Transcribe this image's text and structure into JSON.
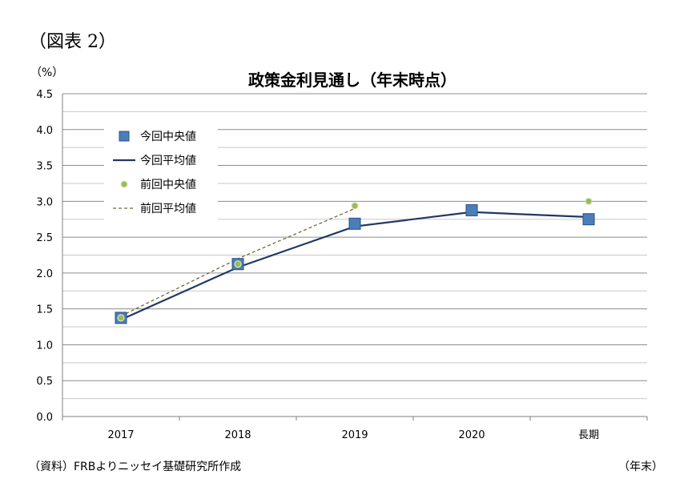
{
  "figure_label": "（図表 2）",
  "unit_label": "（%）",
  "source_note": "（資料）FRBよりニッセイ基礎研究所作成",
  "x_unit_label": "（年末）",
  "chart_data": {
    "type": "line",
    "title": "政策金利見通し（年末時点）",
    "xlabel": "",
    "ylabel": "（%）",
    "categories": [
      "2017",
      "2018",
      "2019",
      "2020",
      "長期"
    ],
    "ylim": [
      0,
      4.5
    ],
    "yticks": [
      "0.0",
      "0.5",
      "1.0",
      "1.5",
      "2.0",
      "2.5",
      "3.0",
      "3.5",
      "4.0",
      "4.5"
    ],
    "grid": true,
    "legend_position": "top-left",
    "series": [
      {
        "name": "今回中央値",
        "kind": "marker",
        "marker": "square",
        "color": "#4a7ebb",
        "values": [
          1.375,
          2.125,
          2.6875,
          2.875,
          2.75
        ]
      },
      {
        "name": "今回平均値",
        "kind": "line",
        "color": "#1f3864",
        "values": [
          1.35,
          2.08,
          2.65,
          2.85,
          2.78
        ]
      },
      {
        "name": "前回中央値",
        "kind": "marker",
        "marker": "circle",
        "color": "#9bbb59",
        "values": [
          1.375,
          2.125,
          2.9375,
          null,
          3.0
        ]
      },
      {
        "name": "前回平均値",
        "kind": "dashed-line",
        "color": "#6b6b3a",
        "values": [
          1.4,
          2.2,
          2.9,
          null,
          null
        ]
      }
    ]
  }
}
